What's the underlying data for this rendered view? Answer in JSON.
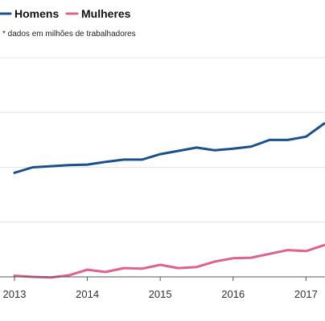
{
  "chart_data": {
    "type": "line",
    "title": "",
    "xlabel": "",
    "ylabel": "",
    "note": "* dados em milhões de trabalhadores",
    "legend_position": "top-left",
    "grid": "horizontal",
    "colors": {
      "homens": "#1a5090",
      "mulheres": "#e0608f",
      "grid": "#e6e6e6",
      "axis": "#555555",
      "text": "#333333"
    },
    "x_ticks": [
      "2013",
      "2014",
      "2015",
      "2016",
      "2017"
    ],
    "xlim": [
      2013.0,
      2017.25
    ],
    "ylim": [
      0,
      4
    ],
    "x": [
      2013.0,
      2013.25,
      2013.5,
      2013.75,
      2014.0,
      2014.25,
      2014.5,
      2014.75,
      2015.0,
      2015.25,
      2015.5,
      2015.75,
      2016.0,
      2016.25,
      2016.5,
      2016.75,
      2017.0,
      2017.25
    ],
    "series": [
      {
        "name": "Homens",
        "color_key": "homens",
        "values": [
          1.9,
          2.0,
          2.02,
          2.04,
          2.05,
          2.1,
          2.14,
          2.14,
          2.24,
          2.3,
          2.36,
          2.31,
          2.34,
          2.38,
          2.5,
          2.5,
          2.56,
          2.8
        ]
      },
      {
        "name": "Mulheres",
        "color_key": "mulheres",
        "values": [
          0.02,
          0.0,
          -0.01,
          0.03,
          0.13,
          0.09,
          0.16,
          0.15,
          0.22,
          0.16,
          0.18,
          0.28,
          0.34,
          0.35,
          0.42,
          0.49,
          0.47,
          0.58
        ]
      }
    ]
  }
}
